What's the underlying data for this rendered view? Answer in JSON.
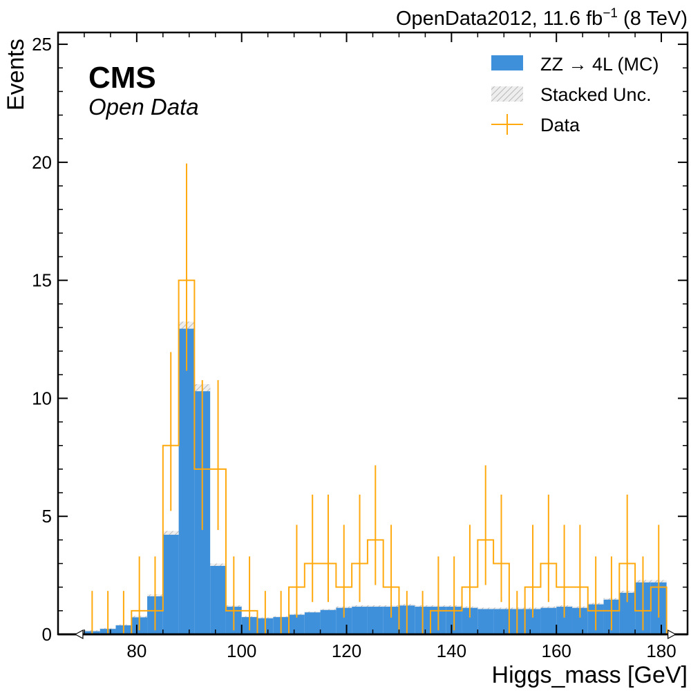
{
  "chart_data": {
    "type": "bar",
    "title_right": "OpenData2012, 11.6 fb",
    "title_right_sup": "−1",
    "title_right_end": " (8 TeV)",
    "cms_label": "CMS",
    "cms_sublabel": "Open Data",
    "xlabel": "Higgs_mass [GeV]",
    "ylabel": "Events",
    "xlim": [
      65,
      185
    ],
    "ylim": [
      0,
      25.5
    ],
    "xticks": [
      80,
      100,
      120,
      140,
      160,
      180
    ],
    "yticks": [
      0,
      5,
      10,
      15,
      20,
      25
    ],
    "bin_edges": [
      70,
      73,
      76,
      79,
      82,
      85,
      88,
      91,
      94,
      97,
      100,
      103,
      106,
      109,
      112,
      115,
      118,
      121,
      124,
      127,
      130,
      133,
      136,
      139,
      142,
      145,
      148,
      151,
      154,
      157,
      160,
      163,
      166,
      169,
      172,
      175,
      178,
      181
    ],
    "mc": {
      "name": "ZZ → 4L (MC)",
      "color": "#3f90da",
      "values": [
        0.15,
        0.25,
        0.4,
        0.75,
        1.65,
        4.3,
        13.1,
        10.45,
        2.95,
        1.2,
        0.75,
        0.7,
        0.75,
        0.85,
        0.95,
        1.05,
        1.15,
        1.2,
        1.2,
        1.2,
        1.25,
        1.2,
        1.2,
        1.2,
        1.15,
        1.1,
        1.1,
        1.1,
        1.1,
        1.15,
        1.2,
        1.15,
        1.3,
        1.5,
        1.8,
        2.25,
        2.25
      ]
    },
    "unc": {
      "name": "Stacked Unc.",
      "values": [
        0.02,
        0.02,
        0.02,
        0.03,
        0.04,
        0.08,
        0.15,
        0.15,
        0.05,
        0.03,
        0.02,
        0.02,
        0.02,
        0.02,
        0.02,
        0.02,
        0.03,
        0.03,
        0.03,
        0.03,
        0.03,
        0.03,
        0.03,
        0.03,
        0.03,
        0.03,
        0.03,
        0.03,
        0.03,
        0.03,
        0.03,
        0.03,
        0.03,
        0.03,
        0.04,
        0.05,
        0.05
      ]
    },
    "data": {
      "name": "Data",
      "color": "#ffa90e",
      "values": [
        0,
        0,
        0,
        1,
        1,
        8,
        15,
        7,
        7,
        1,
        1,
        0,
        0,
        2,
        3,
        3,
        2,
        3,
        4,
        2,
        0,
        0,
        1,
        1,
        2,
        4,
        3,
        0,
        2,
        3,
        2,
        2,
        1,
        1,
        3,
        1,
        2
      ],
      "err_up": [
        1.84,
        1.84,
        1.84,
        2.3,
        2.3,
        3.96,
        4.95,
        3.77,
        3.77,
        2.3,
        2.3,
        1.84,
        1.84,
        2.64,
        2.92,
        2.92,
        2.64,
        2.92,
        3.16,
        2.64,
        1.84,
        1.84,
        2.3,
        2.3,
        2.64,
        3.16,
        2.92,
        1.84,
        2.64,
        2.92,
        2.64,
        2.64,
        2.3,
        2.3,
        2.92,
        2.3,
        2.64
      ],
      "err_down": [
        0,
        0,
        0,
        0.83,
        0.83,
        2.77,
        3.83,
        2.58,
        2.58,
        0.83,
        0.83,
        0,
        0,
        1.29,
        1.63,
        1.63,
        1.29,
        1.63,
        1.91,
        1.29,
        0,
        0,
        0.83,
        0.83,
        1.29,
        1.91,
        1.63,
        0,
        1.29,
        1.63,
        1.29,
        1.29,
        0.83,
        0.83,
        1.63,
        0.83,
        1.29
      ]
    },
    "legend": [
      "ZZ → 4L (MC)",
      "Stacked Unc.",
      "Data"
    ],
    "legend_position": "top-right"
  }
}
